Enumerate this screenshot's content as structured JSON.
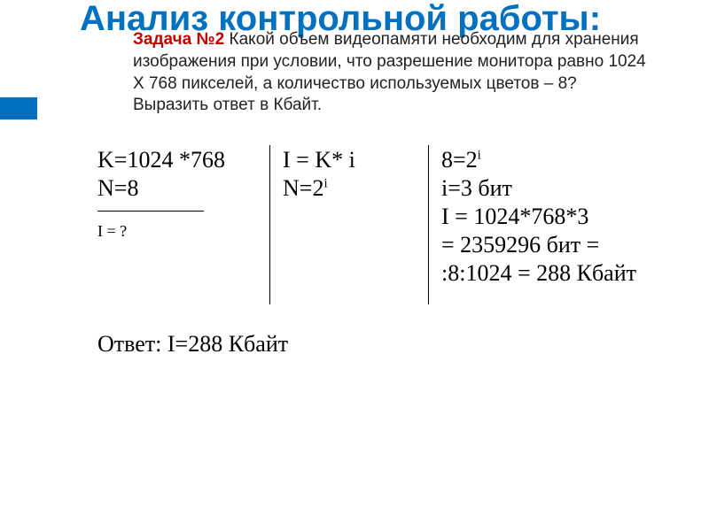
{
  "title": "Анализ контрольной работы:",
  "problem": {
    "label": "Задача №2",
    "text": " Какой объем видеопамяти необходим для хранения изображения при условии, что разрешение монитора равно 1024 Х 768 пикселей, а количество используемых цветов – 8?  Выразить ответ в Кбайт."
  },
  "col1": {
    "l1": "K=1024 *768",
    "l2": "N=8",
    "l3": "I = ?"
  },
  "col2": {
    "l1": "I = K* i",
    "l2_pre": " N=2",
    "l2_sup": "i"
  },
  "col3": {
    "l1_pre": "8=2",
    "l1_sup": "i",
    "l2": " i=3 бит",
    "l3": "I = 1024*768*3",
    "l4": "= 2359296 бит =",
    "l5": ":8:1024 = 288 Кбайт"
  },
  "answer": "Ответ: I=288 Кбайт",
  "colors": {
    "accent": "#0070c0",
    "problem_label": "#c00000",
    "text": "#000000",
    "bg": "#ffffff"
  }
}
